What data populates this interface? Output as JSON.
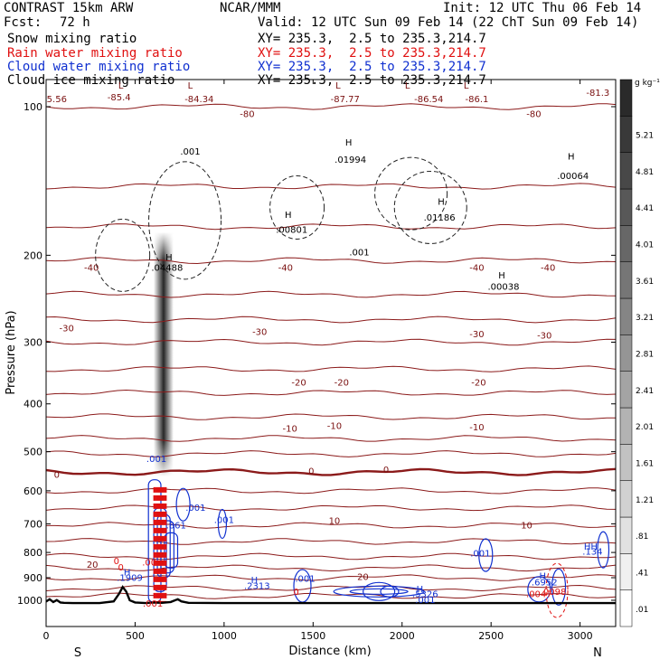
{
  "header": {
    "model": "CONTRAST 15km ARW",
    "org": "NCAR/MMM",
    "init": "Init: 12 UTC Thu 06 Feb 14",
    "fcst_label": "Fcst:",
    "fcst_value": "72 h",
    "valid": "Valid: 12 UTC Sun 09 Feb 14 (22 ChT Sun 09 Feb 14)",
    "fields": [
      {
        "name": "Snow mixing ratio",
        "xy": "XY= 235.3,  2.5 to 235.3,214.7",
        "color": "#000000"
      },
      {
        "name": "Rain water mixing ratio",
        "xy": "XY= 235.3,  2.5 to 235.3,214.7",
        "color": "#e01010"
      },
      {
        "name": "Cloud water mixing ratio",
        "xy": "XY= 235.3,  2.5 to 235.3,214.7",
        "color": "#1030d0"
      },
      {
        "name": "Cloud ice mixing ratio",
        "xy": "XY= 235.3,  2.5 to 235.3,214.7",
        "color": "#000000"
      }
    ]
  },
  "chart_data": {
    "type": "line",
    "subtype": "vertical cross-section",
    "xlabel": "Distance (km)",
    "ylabel": "Pressure (hPa)",
    "xlim": [
      0,
      3200
    ],
    "ylim": [
      1050,
      60
    ],
    "y_scale": "log-pressure",
    "x_ticks": [
      0,
      500,
      1000,
      1500,
      2000,
      2500,
      3000
    ],
    "y_ticks": [
      100,
      200,
      300,
      400,
      500,
      600,
      700,
      800,
      900,
      1000
    ],
    "x_end_labels": {
      "left": "S",
      "right": "N"
    },
    "temperature_isotherms": [
      {
        "value": -80,
        "label": "-80"
      },
      {
        "value": -40,
        "label": "-40"
      },
      {
        "value": -30,
        "label": "-30"
      },
      {
        "value": -20,
        "label": "-20"
      },
      {
        "value": -10,
        "label": "-10"
      },
      {
        "value": 0,
        "label": "0"
      },
      {
        "value": 10,
        "label": "10"
      },
      {
        "value": 20,
        "label": "20"
      }
    ],
    "isotherm_pressures": [
      100,
      145,
      175,
      205,
      240,
      270,
      300,
      340,
      380,
      425,
      470,
      505,
      550,
      600,
      650,
      705,
      760,
      815,
      860,
      900,
      945,
      980
    ],
    "annotations": [
      {
        "x": 60,
        "p": 98,
        "text": "5.56",
        "color": "#7a1010"
      },
      {
        "x": 410,
        "p": 97,
        "text": "-85.4",
        "color": "#7a1010"
      },
      {
        "x": 860,
        "p": 98,
        "text": "-84.34",
        "color": "#7a1010"
      },
      {
        "x": 1130,
        "p": 105,
        "text": "-80",
        "color": "#7a1010"
      },
      {
        "x": 1680,
        "p": 98,
        "text": "-87.77",
        "color": "#7a1010"
      },
      {
        "x": 2150,
        "p": 98,
        "text": "-86.54",
        "color": "#7a1010"
      },
      {
        "x": 2420,
        "p": 98,
        "text": "-86.1",
        "color": "#7a1010"
      },
      {
        "x": 2740,
        "p": 105,
        "text": "-80",
        "color": "#7a1010"
      },
      {
        "x": 3100,
        "p": 95,
        "text": "-81.3",
        "color": "#7a1010"
      },
      {
        "x": 810,
        "p": 125,
        "text": ".001",
        "color": "#000000"
      },
      {
        "x": 1710,
        "p": 130,
        "text": ".01994",
        "color": "#000000"
      },
      {
        "x": 2960,
        "p": 140,
        "text": ".00064",
        "color": "#000000"
      },
      {
        "x": 1380,
        "p": 180,
        "text": ".00801",
        "color": "#000000"
      },
      {
        "x": 2210,
        "p": 170,
        "text": ".01186",
        "color": "#000000"
      },
      {
        "x": 1760,
        "p": 200,
        "text": ".001",
        "color": "#000000"
      },
      {
        "x": 680,
        "p": 215,
        "text": ".04488",
        "color": "#000000"
      },
      {
        "x": 2570,
        "p": 235,
        "text": ".00038",
        "color": "#000000"
      },
      {
        "x": 255,
        "p": 215,
        "text": "-40",
        "color": "#7a1010"
      },
      {
        "x": 1345,
        "p": 215,
        "text": "-40",
        "color": "#7a1010"
      },
      {
        "x": 2420,
        "p": 215,
        "text": "-40",
        "color": "#7a1010"
      },
      {
        "x": 2820,
        "p": 215,
        "text": "-40",
        "color": "#7a1010"
      },
      {
        "x": 115,
        "p": 285,
        "text": "-30",
        "color": "#7a1010"
      },
      {
        "x": 1200,
        "p": 290,
        "text": "-30",
        "color": "#7a1010"
      },
      {
        "x": 2420,
        "p": 293,
        "text": "-30",
        "color": "#7a1010"
      },
      {
        "x": 2800,
        "p": 295,
        "text": "-30",
        "color": "#7a1010"
      },
      {
        "x": 1420,
        "p": 367,
        "text": "-20",
        "color": "#7a1010"
      },
      {
        "x": 1660,
        "p": 367,
        "text": "-20",
        "color": "#7a1010"
      },
      {
        "x": 2430,
        "p": 367,
        "text": "-20",
        "color": "#7a1010"
      },
      {
        "x": 1370,
        "p": 455,
        "text": "-10",
        "color": "#7a1010"
      },
      {
        "x": 1620,
        "p": 450,
        "text": "-10",
        "color": "#7a1010"
      },
      {
        "x": 2420,
        "p": 453,
        "text": "-10",
        "color": "#7a1010"
      },
      {
        "x": 60,
        "p": 565,
        "text": "0",
        "color": "#7a1010"
      },
      {
        "x": 1490,
        "p": 555,
        "text": "0",
        "color": "#7a1010"
      },
      {
        "x": 1910,
        "p": 552,
        "text": "0",
        "color": "#7a1010"
      },
      {
        "x": 1620,
        "p": 700,
        "text": "10",
        "color": "#7a1010"
      },
      {
        "x": 2700,
        "p": 715,
        "text": "10",
        "color": "#7a1010"
      },
      {
        "x": 260,
        "p": 860,
        "text": "20",
        "color": "#7a1010"
      },
      {
        "x": 1780,
        "p": 910,
        "text": "20",
        "color": "#7a1010"
      },
      {
        "x": 620,
        "p": 525,
        "text": ".001",
        "color": "#1030d0"
      },
      {
        "x": 840,
        "p": 658,
        "text": ".001",
        "color": "#1030d0"
      },
      {
        "x": 1000,
        "p": 698,
        "text": ".001",
        "color": "#1030d0"
      },
      {
        "x": 730,
        "p": 715,
        "text": ".861",
        "color": "#1030d0"
      },
      {
        "x": 2440,
        "p": 815,
        "text": ".001",
        "color": "#1030d0"
      },
      {
        "x": 3060,
        "p": 790,
        "text": "HH",
        "color": "#1030d0"
      },
      {
        "x": 3070,
        "p": 808,
        "text": ".134",
        "color": "#1030d0"
      },
      {
        "x": 455,
        "p": 890,
        "text": "H",
        "color": "#1030d0"
      },
      {
        "x": 470,
        "p": 913,
        "text": ".1909",
        "color": "#1030d0"
      },
      {
        "x": 1170,
        "p": 923,
        "text": "H",
        "color": "#1030d0"
      },
      {
        "x": 1185,
        "p": 948,
        "text": ".2313",
        "color": "#1030d0"
      },
      {
        "x": 1455,
        "p": 918,
        "text": ".001",
        "color": "#1030d0"
      },
      {
        "x": 2100,
        "p": 963,
        "text": "H",
        "color": "#1030d0"
      },
      {
        "x": 2130,
        "p": 985,
        "text": ".5326",
        "color": "#1030d0"
      },
      {
        "x": 2130,
        "p": 1012,
        "text": ".001",
        "color": "#1030d0"
      },
      {
        "x": 2790,
        "p": 905,
        "text": "H",
        "color": "#1030d0"
      },
      {
        "x": 2800,
        "p": 933,
        "text": ".6952",
        "color": "#1030d0"
      },
      {
        "x": 2850,
        "p": 975,
        "text": ".0098",
        "color": "#e01010"
      },
      {
        "x": 2770,
        "p": 985,
        "text": ".0047",
        "color": "#e01010"
      },
      {
        "x": 395,
        "p": 845,
        "text": "0",
        "color": "#e01010"
      },
      {
        "x": 420,
        "p": 870,
        "text": "0",
        "color": "#e01010"
      },
      {
        "x": 580,
        "p": 850,
        "text": ".00",
        "color": "#e01010"
      },
      {
        "x": 600,
        "p": 1030,
        "text": ".001",
        "color": "#e01010"
      },
      {
        "x": 1405,
        "p": 975,
        "text": "0",
        "color": "#e01010"
      },
      {
        "x": 420,
        "p": 92,
        "text": "L",
        "color": "#7a1010"
      },
      {
        "x": 810,
        "p": 92,
        "text": "L",
        "color": "#7a1010"
      },
      {
        "x": 1640,
        "p": 92,
        "text": "L",
        "color": "#7a1010"
      },
      {
        "x": 2030,
        "p": 92,
        "text": "L",
        "color": "#7a1010"
      },
      {
        "x": 2360,
        "p": 92,
        "text": "L",
        "color": "#7a1010"
      },
      {
        "x": 3060,
        "p": 88,
        "text": "L",
        "color": "#7a1010"
      },
      {
        "x": 1700,
        "p": 120,
        "text": "H",
        "color": "#000000"
      },
      {
        "x": 2950,
        "p": 128,
        "text": "H",
        "color": "#000000"
      },
      {
        "x": 1360,
        "p": 168,
        "text": "H",
        "color": "#000000"
      },
      {
        "x": 2220,
        "p": 158,
        "text": "H",
        "color": "#000000"
      },
      {
        "x": 2560,
        "p": 223,
        "text": "H",
        "color": "#000000"
      },
      {
        "x": 690,
        "p": 205,
        "text": "H",
        "color": "#000000"
      }
    ],
    "colorbar": {
      "unit": "g kg⁻¹",
      "labels": [
        ".01",
        ".41",
        ".81",
        "1.21",
        "1.61",
        "2.01",
        "2.41",
        "2.81",
        "3.21",
        "3.61",
        "4.01",
        "4.41",
        "4.81",
        "5.21"
      ],
      "low_color": "#ffffff",
      "high_color": "#2a2a2a"
    },
    "terrain": {
      "x": [
        0,
        20,
        40,
        60,
        80,
        100,
        150,
        300,
        380,
        410,
        430,
        450,
        470,
        500,
        560,
        600,
        650,
        700,
        740,
        760,
        800,
        1000,
        1500,
        2000,
        2500,
        3000,
        3200
      ],
      "p": [
        1006,
        995,
        1008,
        999,
        1010,
        1012,
        1013,
        1013,
        1005,
        970,
        940,
        960,
        1000,
        1010,
        1013,
        1010,
        1012,
        1008,
        995,
        1005,
        1012,
        1013,
        1013,
        1013,
        1013,
        1013,
        1013
      ]
    },
    "snow_column": {
      "x": 660,
      "p_top": 180,
      "p_bottom": 560,
      "peak": 5.21
    }
  }
}
